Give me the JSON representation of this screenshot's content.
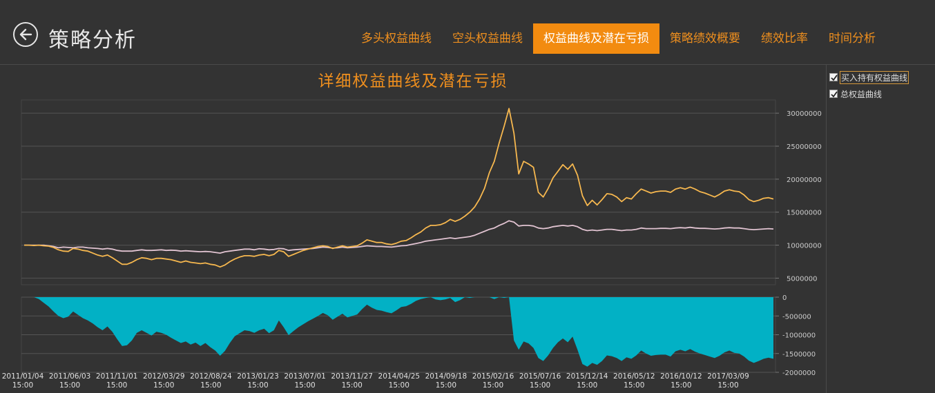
{
  "header": {
    "title": "策略分析",
    "tabs": [
      {
        "label": "多头权益曲线",
        "active": false
      },
      {
        "label": "空头权益曲线",
        "active": false
      },
      {
        "label": "权益曲线及潜在亏损",
        "active": true
      },
      {
        "label": "策略绩效概要",
        "active": false
      },
      {
        "label": "绩效比率",
        "active": false
      },
      {
        "label": "时间分析",
        "active": false
      }
    ]
  },
  "legend": {
    "items": [
      {
        "label": "买入持有权益曲线",
        "checked": true
      },
      {
        "label": "总权益曲线",
        "checked": true
      }
    ]
  },
  "colors": {
    "accent": "#f28b10",
    "total_line": "#f7b84f",
    "buyhold_line": "#e2c4d2",
    "drawdown_fill": "#02b1c5",
    "grid": "#555555"
  },
  "chart_data": {
    "type": "line",
    "title": "详细权益曲线及潜在亏损",
    "top": {
      "ylim": [
        4000000,
        32000000
      ],
      "yticks": [
        5000000,
        10000000,
        15000000,
        20000000,
        25000000,
        30000000
      ],
      "ytick_labels": [
        "5000000",
        "10000000",
        "15000000",
        "20000000",
        "25000000",
        "30000000"
      ],
      "series": [
        {
          "name": "总权益曲线",
          "color": "#f7b84f",
          "values": [
            10000000,
            10000000,
            9950000,
            10000000,
            9900000,
            9850000,
            9650000,
            9300000,
            9100000,
            9050000,
            9500000,
            9400000,
            9200000,
            9100000,
            8800000,
            8500000,
            8300000,
            8500000,
            8100000,
            7600000,
            7100000,
            7100000,
            7400000,
            7800000,
            8100000,
            8000000,
            7800000,
            8000000,
            8000000,
            7900000,
            7800000,
            7600000,
            7400000,
            7600000,
            7400000,
            7300000,
            7200000,
            7300000,
            7100000,
            7000000,
            6700000,
            7000000,
            7500000,
            7900000,
            8200000,
            8400000,
            8400000,
            8300000,
            8500000,
            8600000,
            8400000,
            8600000,
            9200000,
            9000000,
            8300000,
            8600000,
            8900000,
            9200000,
            9400000,
            9600000,
            9800000,
            9900000,
            9800000,
            9500000,
            9700000,
            9900000,
            9700000,
            9800000,
            9900000,
            10300000,
            10800000,
            10600000,
            10400000,
            10400000,
            10200000,
            10100000,
            10300000,
            10600000,
            10700000,
            11100000,
            11600000,
            12000000,
            12600000,
            13000000,
            13000000,
            13100000,
            13400000,
            13900000,
            13600000,
            13900000,
            14400000,
            15000000,
            15800000,
            17000000,
            18600000,
            21000000,
            22700000,
            25500000,
            28000000,
            30700000,
            27000000,
            20800000,
            22700000,
            22300000,
            21800000,
            18000000,
            17300000,
            18600000,
            20200000,
            21200000,
            22200000,
            21500000,
            22300000,
            20600000,
            17500000,
            16000000,
            16800000,
            16100000,
            16900000,
            17800000,
            17700000,
            17300000,
            16600000,
            17200000,
            17000000,
            17800000,
            18500000,
            18200000,
            17900000,
            18100000,
            18200000,
            18200000,
            18000000,
            18500000,
            18700000,
            18500000,
            18800000,
            18500000,
            18100000,
            17900000,
            17600000,
            17300000,
            17700000,
            18200000,
            18400000,
            18200000,
            18100000,
            17600000,
            16900000,
            16600000,
            16800000,
            17100000,
            17200000,
            17000000
          ]
        },
        {
          "name": "买入持有权益曲线",
          "color": "#e2c4d2",
          "values": [
            10000000,
            10000000,
            10000000,
            10000000,
            10000000,
            9900000,
            9800000,
            9600000,
            9700000,
            9650000,
            9600000,
            9700000,
            9700000,
            9600000,
            9550000,
            9500000,
            9400000,
            9500000,
            9400000,
            9200000,
            9100000,
            9100000,
            9100000,
            9200000,
            9300000,
            9200000,
            9200000,
            9250000,
            9300000,
            9200000,
            9250000,
            9200000,
            9100000,
            9150000,
            9100000,
            9050000,
            9000000,
            9050000,
            9000000,
            8900000,
            8800000,
            9000000,
            9100000,
            9200000,
            9300000,
            9400000,
            9400000,
            9300000,
            9450000,
            9400000,
            9300000,
            9350000,
            9500000,
            9450000,
            9200000,
            9300000,
            9350000,
            9400000,
            9450000,
            9500000,
            9600000,
            9700000,
            9650000,
            9550000,
            9600000,
            9700000,
            9600000,
            9650000,
            9700000,
            9800000,
            9900000,
            9850000,
            9800000,
            9800000,
            9750000,
            9700000,
            9800000,
            9900000,
            9950000,
            10100000,
            10250000,
            10400000,
            10600000,
            10700000,
            10800000,
            10900000,
            11000000,
            11100000,
            11000000,
            11100000,
            11200000,
            11300000,
            11500000,
            11800000,
            12100000,
            12400000,
            12600000,
            13000000,
            13300000,
            13700000,
            13500000,
            12900000,
            13000000,
            13000000,
            12900000,
            12600000,
            12500000,
            12600000,
            12800000,
            12900000,
            13000000,
            12900000,
            13000000,
            12800000,
            12400000,
            12200000,
            12300000,
            12200000,
            12300000,
            12400000,
            12400000,
            12300000,
            12200000,
            12300000,
            12300000,
            12400000,
            12600000,
            12500000,
            12500000,
            12500000,
            12550000,
            12550000,
            12500000,
            12600000,
            12650000,
            12600000,
            12700000,
            12600000,
            12550000,
            12550000,
            12500000,
            12450000,
            12500000,
            12600000,
            12650000,
            12600000,
            12600000,
            12500000,
            12400000,
            12350000,
            12400000,
            12450000,
            12500000,
            12450000
          ]
        }
      ]
    },
    "bottom": {
      "ylim": [
        -2000000,
        0
      ],
      "yticks": [
        0,
        -500000,
        -1000000,
        -1500000,
        -2000000
      ],
      "ytick_labels": [
        "0",
        "-500000",
        "-1000000",
        "-1500000",
        "-2000000"
      ],
      "series": [
        {
          "name": "潜在亏损",
          "color": "#02b1c5",
          "values": [
            0,
            0,
            0,
            -50000,
            -150000,
            -250000,
            -380000,
            -500000,
            -560000,
            -520000,
            -380000,
            -470000,
            -560000,
            -620000,
            -700000,
            -800000,
            -880000,
            -780000,
            -920000,
            -1120000,
            -1300000,
            -1280000,
            -1150000,
            -950000,
            -880000,
            -950000,
            -1020000,
            -920000,
            -950000,
            -1000000,
            -1080000,
            -1150000,
            -1220000,
            -1180000,
            -1260000,
            -1210000,
            -1300000,
            -1220000,
            -1330000,
            -1420000,
            -1560000,
            -1430000,
            -1220000,
            -1040000,
            -960000,
            -880000,
            -900000,
            -950000,
            -880000,
            -840000,
            -960000,
            -880000,
            -620000,
            -800000,
            -1010000,
            -900000,
            -800000,
            -720000,
            -640000,
            -570000,
            -500000,
            -420000,
            -480000,
            -600000,
            -520000,
            -440000,
            -540000,
            -500000,
            -460000,
            -320000,
            -200000,
            -280000,
            -340000,
            -360000,
            -400000,
            -430000,
            -350000,
            -260000,
            -240000,
            -180000,
            -100000,
            -50000,
            -20000,
            0,
            -60000,
            -80000,
            -60000,
            -20000,
            -130000,
            -80000,
            0,
            -20000,
            0,
            0,
            0,
            0,
            -50000,
            0,
            -20000,
            0,
            -1150000,
            -1400000,
            -1180000,
            -1230000,
            -1350000,
            -1620000,
            -1700000,
            -1550000,
            -1350000,
            -1200000,
            -1100000,
            -1200000,
            -1050000,
            -1400000,
            -1780000,
            -1850000,
            -1750000,
            -1800000,
            -1700000,
            -1550000,
            -1570000,
            -1620000,
            -1700000,
            -1600000,
            -1640000,
            -1550000,
            -1420000,
            -1500000,
            -1560000,
            -1540000,
            -1530000,
            -1530000,
            -1580000,
            -1440000,
            -1400000,
            -1440000,
            -1380000,
            -1450000,
            -1500000,
            -1540000,
            -1580000,
            -1620000,
            -1560000,
            -1470000,
            -1420000,
            -1480000,
            -1500000,
            -1580000,
            -1690000,
            -1750000,
            -1700000,
            -1640000,
            -1610000,
            -1640000
          ]
        }
      ]
    },
    "x_tick_labels": [
      {
        "date": "2011/01/04",
        "time": "15:00"
      },
      {
        "date": "2011/06/03",
        "time": "15:00"
      },
      {
        "date": "2011/11/01",
        "time": "15:00"
      },
      {
        "date": "2012/03/29",
        "time": "15:00"
      },
      {
        "date": "2012/08/24",
        "time": "15:00"
      },
      {
        "date": "2013/01/23",
        "time": "15:00"
      },
      {
        "date": "2013/07/01",
        "time": "15:00"
      },
      {
        "date": "2013/11/27",
        "time": "15:00"
      },
      {
        "date": "2014/04/25",
        "time": "15:00"
      },
      {
        "date": "2014/09/18",
        "time": "15:00"
      },
      {
        "date": "2015/02/16",
        "time": "15:00"
      },
      {
        "date": "2015/07/16",
        "time": "15:00"
      },
      {
        "date": "2015/12/14",
        "time": "15:00"
      },
      {
        "date": "2016/05/12",
        "time": "15:00"
      },
      {
        "date": "2016/10/12",
        "time": "15:00"
      },
      {
        "date": "2017/03/09",
        "time": "15:00"
      }
    ]
  }
}
